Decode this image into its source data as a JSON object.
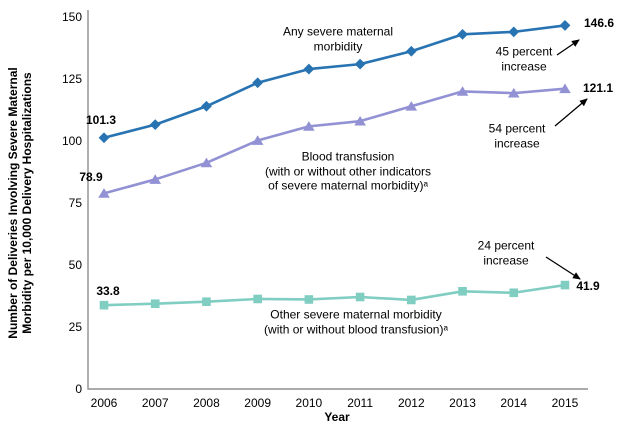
{
  "figure": {
    "y_axis_title": "Number of Deliveries Involving Severe Maternal\nMorbidity per 10,000 Delivery Hospitalizations",
    "x_axis_title": "Year"
  },
  "chart_data": {
    "type": "line",
    "x": [
      "2006",
      "2007",
      "2008",
      "2009",
      "2010",
      "2011",
      "2012",
      "2013",
      "2014",
      "2015"
    ],
    "series": [
      {
        "name": "Any severe maternal morbidity",
        "marker": "diamond",
        "color": "#2873B2",
        "values": [
          101.3,
          106.6,
          114.0,
          123.5,
          129.0,
          131.0,
          136.2,
          143.0,
          144.0,
          146.6
        ],
        "start_label": "101.3",
        "end_label": "146.6",
        "percent_increase": "45 percent increase"
      },
      {
        "name": "Blood transfusion (with or without other indicators of severe maternal morbidity)",
        "marker": "triangle",
        "color": "#9191D4",
        "values": [
          78.9,
          84.5,
          91.2,
          100.2,
          105.9,
          108.0,
          114.0,
          120.0,
          119.3,
          121.1
        ],
        "start_label": "78.9",
        "end_label": "121.1",
        "percent_increase": "54 percent increase"
      },
      {
        "name": "Other severe maternal morbidity (with or without blood transfusion)",
        "marker": "square",
        "color": "#80CDC2",
        "values": [
          33.8,
          34.4,
          35.2,
          36.3,
          36.1,
          37.1,
          35.9,
          39.4,
          38.8,
          41.9
        ],
        "start_label": "33.8",
        "end_label": "41.9",
        "percent_increase": "24 percent increase"
      }
    ],
    "title": "",
    "xlabel": "Year",
    "ylabel": "Number of Deliveries Involving Severe Maternal Morbidity per 10,000 Delivery Hospitalizations",
    "ylim": [
      0,
      150
    ],
    "yticks": [
      0,
      25,
      50,
      75,
      100,
      125,
      150
    ],
    "grid": "off",
    "legend": "inline annotations"
  },
  "annotations": {
    "any_smm": "Any severe maternal\nmorbidity",
    "blood_transfusion": "Blood transfusion\n(with or without other indicators\nof severe maternal morbidity)ᵃ",
    "other_smm": "Other severe maternal morbidity\n(with or without blood transfusion)ᵃ",
    "pct45": "45 percent\nincrease",
    "pct54": "54 percent\nincrease",
    "pct24": "24 percent\nincrease"
  },
  "point_labels": {
    "any_start": "101.3",
    "any_end": "146.6",
    "blood_start": "78.9",
    "blood_end": "121.1",
    "other_start": "33.8",
    "other_end": "41.9"
  },
  "colors": {
    "any_smm": "#2873B2",
    "blood_transfusion": "#9191D4",
    "other_smm": "#80CDC2",
    "axis": "#8F8F8F",
    "text": "#000000"
  }
}
